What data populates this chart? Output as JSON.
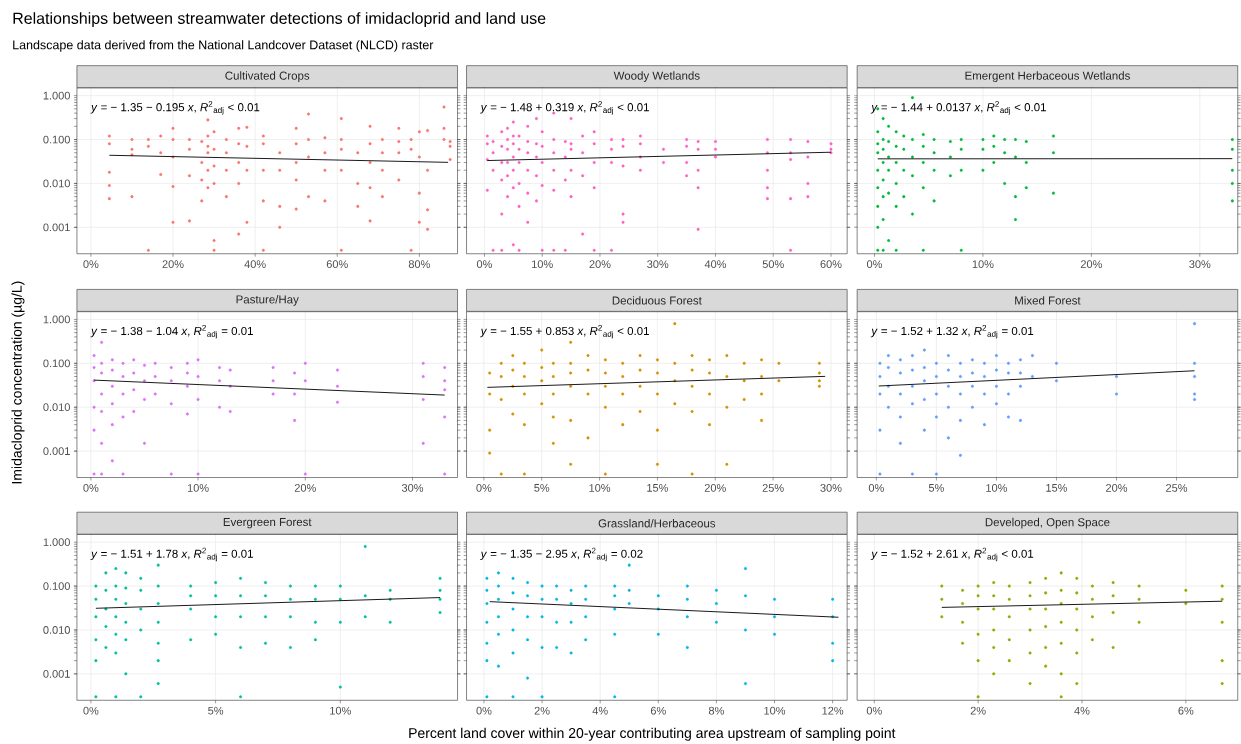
{
  "chart_data": [
    {
      "type": "scatter",
      "title": "Relationships between streamwater detections of imidacloprid and land use",
      "subtitle": "Landscape data derived from the National Landcover Dataset (NLCD) raster",
      "log": "y",
      "grid": true,
      "marker": "circle",
      "xlim": [
        -3.4,
        89.3
      ],
      "ylim": [
        0.00025,
        1.5
      ],
      "xticks": [
        {
          "value": 0,
          "label": "0%"
        },
        {
          "value": 20,
          "label": "20%"
        },
        {
          "value": 40,
          "label": "40%"
        },
        {
          "value": 60,
          "label": "60%"
        },
        {
          "value": 80,
          "label": "80%"
        }
      ],
      "yticks": [
        {
          "value": 0.001,
          "label": "0.001"
        },
        {
          "value": 0.01,
          "label": "0.010"
        },
        {
          "value": 0.1,
          "label": "0.100"
        },
        {
          "value": 1,
          "label": "1.000"
        }
      ],
      "annotations": [
        "*y* = − 1.35 − 0.195 *x*, *R*$^{2}$$_{adj}$ < 0.01"
      ],
      "series": [
        {
          "name": "Cultivated Crops",
          "color": "#F8766D",
          "x": [
            4.5,
            4.5,
            4.5,
            4.5,
            4.5,
            10,
            10,
            10,
            10,
            14,
            14,
            14,
            17,
            17,
            17,
            20,
            20,
            20,
            20,
            20,
            24,
            24,
            24,
            24,
            27,
            27,
            27,
            27,
            28.5,
            28.5,
            28.5,
            28.5,
            28.5,
            28.5,
            30,
            30,
            30,
            30,
            30,
            30,
            33,
            33,
            33,
            33,
            36,
            36,
            36,
            36,
            36,
            38,
            38,
            38,
            38,
            42,
            42,
            42,
            42,
            42,
            46,
            46,
            46,
            46,
            50,
            50,
            50,
            50,
            50,
            53,
            53,
            53,
            53,
            57,
            57,
            57,
            57,
            61,
            61,
            61,
            61,
            61,
            65,
            65,
            65,
            68,
            68,
            68,
            68,
            68,
            71,
            71,
            71,
            71,
            75,
            75,
            75,
            75,
            78,
            78,
            78,
            80,
            80,
            80,
            80,
            82,
            82,
            82,
            82,
            86,
            86,
            86,
            87.5,
            87.5,
            87.5
          ],
          "values": [
            0.12,
            0.08,
            0.018,
            0.009,
            0.0045,
            0.1,
            0.06,
            0.045,
            0.005,
            0.1,
            0.07,
            0.0003,
            0.12,
            0.05,
            0.016,
            0.18,
            0.1,
            0.04,
            0.0085,
            0.0013,
            0.1,
            0.06,
            0.015,
            0.0014,
            0.09,
            0.03,
            0.012,
            0.004,
            0.28,
            0.12,
            0.07,
            0.05,
            0.02,
            0.008,
            0.15,
            0.06,
            0.025,
            0.01,
            0.0005,
            0.0003,
            0.1,
            0.05,
            0.02,
            0.005,
            0.18,
            0.08,
            0.03,
            0.01,
            0.0007,
            0.19,
            0.07,
            0.02,
            0.0013,
            0.12,
            0.08,
            0.02,
            0.004,
            0.0003,
            0.05,
            0.02,
            0.003,
            0.001,
            0.18,
            0.08,
            0.03,
            0.012,
            0.0026,
            0.38,
            0.1,
            0.04,
            0.005,
            0.11,
            0.05,
            0.02,
            0.004,
            0.3,
            0.1,
            0.06,
            0.02,
            0.0003,
            0.05,
            0.01,
            0.003,
            0.2,
            0.08,
            0.03,
            0.008,
            0.0014,
            0.1,
            0.05,
            0.02,
            0.005,
            0.18,
            0.09,
            0.05,
            0.012,
            0.1,
            0.06,
            0.0003,
            0.15,
            0.04,
            0.006,
            0.0013,
            0.16,
            0.02,
            0.0025,
            0.0009,
            0.55,
            0.18,
            0.1,
            0.09,
            0.07,
            0.035
          ]
        },
        {
          "type": "line",
          "color": "#000000",
          "x": [
            4.5,
            87
          ],
          "values": [
            0.0438,
            0.0302
          ],
          "marker": "none"
        }
      ]
    },
    {
      "type": "scatter",
      "log": "y",
      "grid": true,
      "marker": "circle",
      "tick_labels": "x",
      "xlim": [
        -3.1,
        62.8
      ],
      "ylim": [
        0.00025,
        1.5
      ],
      "xticks": [
        {
          "value": 0,
          "label": "0%"
        },
        {
          "value": 10,
          "label": "10%"
        },
        {
          "value": 20,
          "label": "20%"
        },
        {
          "value": 30,
          "label": "30%"
        },
        {
          "value": 40,
          "label": "40%"
        },
        {
          "value": 50,
          "label": "50%"
        },
        {
          "value": 60,
          "label": "60%"
        }
      ],
      "yticks": [
        {
          "value": 0.001,
          "label": null
        },
        {
          "value": 0.01,
          "label": null
        },
        {
          "value": 0.1,
          "label": null
        },
        {
          "value": 1,
          "label": null
        }
      ],
      "annotations": [
        "*y* = − 1.48 + 0.319 *x*, *R*$^{2}$$_{adj}$ < 0.01"
      ],
      "series": [
        {
          "name": "Woody Wetlands",
          "color": "#FF61C3",
          "x": [
            0.5,
            0.5,
            0.5,
            0.5,
            1.5,
            1.5,
            1.5,
            1.5,
            3,
            3,
            3,
            3,
            3,
            3,
            4,
            4,
            4,
            4,
            4,
            4,
            5,
            5,
            5,
            5,
            5,
            5,
            5,
            6,
            6,
            6,
            6,
            6,
            6,
            7.5,
            7.5,
            7.5,
            7.5,
            7.5,
            7.5,
            9,
            9,
            9,
            9,
            9,
            10,
            10,
            10,
            10,
            10,
            12,
            12,
            12,
            12,
            12,
            12,
            14,
            14,
            14,
            14,
            15,
            15,
            15,
            15,
            15,
            17,
            17,
            17,
            17,
            19,
            19,
            19,
            19,
            19,
            22,
            22,
            22,
            22,
            24,
            24,
            24,
            24,
            24,
            27,
            27,
            27,
            27,
            31,
            31,
            35,
            35,
            35,
            35,
            37,
            37,
            37,
            37,
            37,
            40,
            40,
            40,
            49,
            49,
            49,
            49,
            49,
            53,
            53,
            53,
            53,
            53,
            56,
            56,
            56,
            56,
            60,
            60,
            60
          ],
          "values": [
            0.12,
            0.08,
            0.035,
            0.007,
            0.09,
            0.05,
            0.02,
            0.0003,
            0.15,
            0.07,
            0.03,
            0.012,
            0.002,
            0.0003,
            0.18,
            0.1,
            0.06,
            0.03,
            0.015,
            0.005,
            0.25,
            0.12,
            0.08,
            0.04,
            0.02,
            0.008,
            0.0004,
            0.12,
            0.06,
            0.03,
            0.01,
            0.003,
            0.0003,
            0.2,
            0.09,
            0.05,
            0.02,
            0.006,
            0.0013,
            0.3,
            0.08,
            0.04,
            0.015,
            0.004,
            0.15,
            0.07,
            0.03,
            0.009,
            0.0003,
            0.4,
            0.1,
            0.05,
            0.02,
            0.007,
            0.0003,
            0.09,
            0.04,
            0.012,
            0.0003,
            0.3,
            0.08,
            0.06,
            0.02,
            0.005,
            0.12,
            0.05,
            0.015,
            0.0007,
            0.15,
            0.08,
            0.03,
            0.008,
            0.0003,
            0.1,
            0.06,
            0.03,
            0.0003,
            0.1,
            0.07,
            0.025,
            0.002,
            0.0013,
            0.12,
            0.08,
            0.04,
            0.02,
            0.06,
            0.03,
            0.1,
            0.07,
            0.03,
            0.015,
            0.09,
            0.06,
            0.02,
            0.008,
            0.0009,
            0.09,
            0.06,
            0.04,
            0.1,
            0.05,
            0.02,
            0.008,
            0.0045,
            0.1,
            0.05,
            0.035,
            0.0045,
            0.0003,
            0.09,
            0.04,
            0.01,
            0.005,
            0.08,
            0.06,
            0.05
          ]
        },
        {
          "type": "line",
          "color": "#000000",
          "x": [
            0.5,
            60
          ],
          "values": [
            0.0332,
            0.0514
          ],
          "marker": "none"
        }
      ]
    },
    {
      "type": "scatter",
      "log": "y",
      "grid": true,
      "marker": "circle",
      "tick_labels": "x",
      "xlim": [
        -1.6,
        33.5
      ],
      "ylim": [
        0.00025,
        1.5
      ],
      "xticks": [
        {
          "value": 0,
          "label": "0%"
        },
        {
          "value": 10,
          "label": "10%"
        },
        {
          "value": 20,
          "label": "20%"
        },
        {
          "value": 30,
          "label": "30%"
        }
      ],
      "yticks": [
        {
          "value": 0.001,
          "label": null
        },
        {
          "value": 0.01,
          "label": null
        },
        {
          "value": 0.1,
          "label": null
        },
        {
          "value": 1,
          "label": null
        }
      ],
      "annotations": [
        "*y* = − 1.44 + 0.0137 *x*, *R*$^{2}$$_{adj}$ < 0.01"
      ],
      "series": [
        {
          "name": "Emergent Herbaceous Wetlands",
          "color": "#00BA38",
          "x": [
            0.3,
            0.3,
            0.3,
            0.3,
            0.3,
            0.3,
            0.3,
            0.3,
            0.3,
            0.8,
            0.8,
            0.8,
            0.8,
            0.8,
            0.8,
            0.8,
            0.8,
            1.3,
            1.3,
            1.3,
            1.3,
            1.3,
            1.3,
            2,
            2,
            2,
            2,
            2,
            2,
            2.7,
            2.7,
            2.7,
            2.7,
            3.5,
            3.5,
            3.5,
            3.5,
            3.5,
            4.5,
            4.5,
            4.5,
            4.5,
            4.5,
            5.5,
            5.5,
            5.5,
            5.5,
            7,
            7,
            7,
            8,
            8,
            8,
            8,
            10,
            10,
            10,
            11,
            11,
            11,
            12,
            12,
            12,
            13,
            13,
            13,
            13,
            14,
            14,
            14,
            16.5,
            16.5,
            16.5,
            33,
            33,
            33,
            33,
            33
          ],
          "values": [
            0.5,
            0.15,
            0.08,
            0.05,
            0.02,
            0.008,
            0.003,
            0.001,
            0.0003,
            0.3,
            0.1,
            0.06,
            0.03,
            0.012,
            0.005,
            0.0015,
            0.0003,
            0.2,
            0.09,
            0.04,
            0.02,
            0.006,
            0.0005,
            0.15,
            0.07,
            0.03,
            0.01,
            0.003,
            0.0003,
            0.12,
            0.06,
            0.02,
            0.005,
            0.9,
            0.1,
            0.04,
            0.015,
            0.002,
            0.13,
            0.07,
            0.03,
            0.008,
            0.0003,
            0.1,
            0.05,
            0.02,
            0.004,
            0.09,
            0.04,
            0.015,
            0.1,
            0.06,
            0.02,
            0.0003,
            0.1,
            0.06,
            0.02,
            0.12,
            0.07,
            0.03,
            0.1,
            0.05,
            0.01,
            0.1,
            0.04,
            0.005,
            0.0015,
            0.09,
            0.03,
            0.008,
            0.12,
            0.05,
            0.006,
            0.1,
            0.06,
            0.02,
            0.01,
            0.004
          ]
        },
        {
          "type": "line",
          "color": "#000000",
          "x": [
            0.3,
            33
          ],
          "values": [
            0.0363,
            0.0367
          ],
          "marker": "none"
        }
      ]
    },
    {
      "type": "scatter",
      "ylabel": "Imidacloprid concentration (µg/L)",
      "log": "y",
      "grid": true,
      "marker": "circle",
      "xlim": [
        -1.3,
        34.2
      ],
      "ylim": [
        0.00025,
        1.5
      ],
      "xticks": [
        {
          "value": 0,
          "label": "0%"
        },
        {
          "value": 10,
          "label": "10%"
        },
        {
          "value": 20,
          "label": "20%"
        },
        {
          "value": 30,
          "label": "30%"
        }
      ],
      "yticks": [
        {
          "value": 0.001,
          "label": "0.001"
        },
        {
          "value": 0.01,
          "label": "0.010"
        },
        {
          "value": 0.1,
          "label": "0.100"
        },
        {
          "value": 1,
          "label": "1.000"
        }
      ],
      "annotations": [
        "*y* = − 1.38 − 1.04 *x*, *R*$^{2}$$_{adj}$ = 0.01"
      ],
      "series": [
        {
          "name": "Pasture/Hay",
          "color": "#DB72FB",
          "x": [
            0.3,
            0.3,
            0.3,
            0.3,
            0.3,
            0.3,
            1,
            1,
            1,
            1,
            1,
            1,
            1,
            2,
            2,
            2,
            2,
            2,
            2,
            3,
            3,
            3,
            3,
            3,
            4,
            4,
            4,
            4,
            5,
            5,
            5,
            5,
            6,
            6,
            6,
            7.5,
            7.5,
            7.5,
            7.5,
            9,
            9,
            9,
            9,
            10,
            10,
            10,
            10,
            12,
            12,
            12,
            13,
            13,
            13,
            17,
            17,
            17,
            19,
            19,
            19,
            20,
            20,
            20,
            23,
            23,
            23,
            31,
            31,
            31,
            31,
            33,
            33,
            33,
            33,
            33
          ],
          "values": [
            0.15,
            0.08,
            0.04,
            0.01,
            0.003,
            0.0003,
            0.3,
            0.1,
            0.06,
            0.02,
            0.008,
            0.0015,
            0.0003,
            0.12,
            0.07,
            0.03,
            0.012,
            0.004,
            0.0006,
            0.1,
            0.05,
            0.02,
            0.006,
            0.0003,
            0.12,
            0.06,
            0.025,
            0.008,
            0.09,
            0.04,
            0.015,
            0.0015,
            0.1,
            0.05,
            0.02,
            0.08,
            0.04,
            0.012,
            0.0003,
            0.1,
            0.06,
            0.03,
            0.007,
            0.12,
            0.05,
            0.015,
            0.0003,
            0.08,
            0.04,
            0.01,
            0.07,
            0.03,
            0.008,
            0.08,
            0.04,
            0.02,
            0.06,
            0.02,
            0.005,
            0.1,
            0.04,
            0.0003,
            0.07,
            0.03,
            0.013,
            0.1,
            0.05,
            0.015,
            0.0015,
            0.08,
            0.04,
            0.025,
            0.006,
            0.0003
          ]
        },
        {
          "type": "line",
          "color": "#000000",
          "x": [
            0.3,
            33
          ],
          "values": [
            0.0414,
            0.0189
          ],
          "marker": "none"
        }
      ]
    },
    {
      "type": "scatter",
      "log": "y",
      "grid": true,
      "marker": "circle",
      "tick_labels": "x",
      "xlim": [
        -1.5,
        31.4
      ],
      "ylim": [
        0.00025,
        1.5
      ],
      "xticks": [
        {
          "value": 0,
          "label": "0%"
        },
        {
          "value": 5,
          "label": "5%"
        },
        {
          "value": 10,
          "label": "10%"
        },
        {
          "value": 15,
          "label": "15%"
        },
        {
          "value": 20,
          "label": "20%"
        },
        {
          "value": 25,
          "label": "25%"
        },
        {
          "value": 30,
          "label": "30%"
        }
      ],
      "yticks": [
        {
          "value": 0.001,
          "label": null
        },
        {
          "value": 0.01,
          "label": null
        },
        {
          "value": 0.1,
          "label": null
        },
        {
          "value": 1,
          "label": null
        }
      ],
      "annotations": [
        "*y* = − 1.55 + 0.853 *x*, *R*$^{2}$$_{adj}$ < 0.01"
      ],
      "series": [
        {
          "name": "Deciduous Forest",
          "color": "#D39200",
          "x": [
            0.5,
            0.5,
            0.5,
            0.5,
            1.5,
            1.5,
            1.5,
            1.5,
            2.5,
            2.5,
            2.5,
            2.5,
            3.5,
            3.5,
            3.5,
            3.5,
            3.5,
            5,
            5,
            5,
            5,
            6,
            6,
            6,
            6,
            6,
            7.5,
            7.5,
            7.5,
            7.5,
            7.5,
            7.5,
            9,
            9,
            9,
            9,
            10.5,
            10.5,
            10.5,
            10.5,
            10.5,
            12,
            12,
            12,
            12,
            13.5,
            13.5,
            13.5,
            13.5,
            15,
            15,
            15,
            15,
            15,
            16.5,
            16.5,
            16.5,
            16.5,
            18,
            18,
            18,
            18,
            18,
            19.5,
            19.5,
            19.5,
            19.5,
            21,
            21,
            21,
            21,
            22.5,
            22.5,
            22.5,
            24,
            24,
            24,
            24,
            25.5,
            25.5,
            29,
            29,
            29,
            29
          ],
          "values": [
            0.06,
            0.02,
            0.003,
            0.0009,
            0.1,
            0.05,
            0.015,
            0.0003,
            0.15,
            0.07,
            0.03,
            0.007,
            0.1,
            0.05,
            0.02,
            0.004,
            0.0003,
            0.2,
            0.08,
            0.04,
            0.012,
            0.1,
            0.05,
            0.02,
            0.006,
            0.0015,
            0.3,
            0.1,
            0.06,
            0.03,
            0.005,
            0.0005,
            0.15,
            0.07,
            0.02,
            0.002,
            0.12,
            0.06,
            0.03,
            0.01,
            0.0003,
            0.1,
            0.05,
            0.02,
            0.004,
            0.15,
            0.07,
            0.03,
            0.008,
            0.12,
            0.06,
            0.02,
            0.003,
            0.0005,
            0.8,
            0.1,
            0.04,
            0.012,
            0.15,
            0.07,
            0.03,
            0.008,
            0.0003,
            0.12,
            0.06,
            0.02,
            0.004,
            0.15,
            0.05,
            0.01,
            0.0005,
            0.1,
            0.04,
            0.015,
            0.12,
            0.05,
            0.02,
            0.005,
            0.1,
            0.04,
            0.1,
            0.06,
            0.04,
            0.03
          ]
        },
        {
          "type": "line",
          "color": "#000000",
          "x": [
            0.3,
            29.5
          ],
          "values": [
            0.0283,
            0.0504
          ],
          "marker": "none"
        }
      ]
    },
    {
      "type": "scatter",
      "log": "y",
      "grid": true,
      "marker": "circle",
      "tick_labels": "x",
      "xlim": [
        -1.6,
        30.1
      ],
      "ylim": [
        0.00025,
        1.5
      ],
      "xticks": [
        {
          "value": 0,
          "label": "0%"
        },
        {
          "value": 5,
          "label": "5%"
        },
        {
          "value": 10,
          "label": "10%"
        },
        {
          "value": 15,
          "label": "15%"
        },
        {
          "value": 20,
          "label": "20%"
        },
        {
          "value": 25,
          "label": "25%"
        }
      ],
      "yticks": [
        {
          "value": 0.001,
          "label": null
        },
        {
          "value": 0.01,
          "label": null
        },
        {
          "value": 0.1,
          "label": null
        },
        {
          "value": 1,
          "label": null
        }
      ],
      "annotations": [
        "*y* = − 1.52 + 1.32 *x*, *R*$^{2}$$_{adj}$ = 0.01"
      ],
      "series": [
        {
          "name": "Mixed Forest",
          "color": "#619CFF",
          "x": [
            0.3,
            0.3,
            0.3,
            0.3,
            0.3,
            1,
            1,
            1,
            1,
            2,
            2,
            2,
            2,
            2,
            3,
            3,
            3,
            3,
            3,
            4,
            4,
            4,
            4,
            4,
            5,
            5,
            5,
            5,
            5,
            6,
            6,
            6,
            6,
            6,
            7,
            7,
            7,
            7,
            7,
            8,
            8,
            8,
            8,
            9,
            9,
            9,
            9,
            10,
            10,
            10,
            10,
            11,
            11,
            11,
            11,
            12,
            12,
            12,
            12,
            13,
            13,
            15,
            15,
            20,
            20,
            26.5,
            26.5,
            26.5,
            26.5,
            26.5
          ],
          "values": [
            0.1,
            0.05,
            0.02,
            0.003,
            0.0003,
            0.15,
            0.08,
            0.03,
            0.01,
            0.12,
            0.06,
            0.02,
            0.006,
            0.0015,
            0.15,
            0.07,
            0.03,
            0.012,
            0.0003,
            0.2,
            0.08,
            0.04,
            0.015,
            0.003,
            0.1,
            0.05,
            0.02,
            0.006,
            0.0003,
            0.15,
            0.07,
            0.03,
            0.01,
            0.002,
            0.1,
            0.05,
            0.02,
            0.005,
            0.0008,
            0.12,
            0.06,
            0.03,
            0.01,
            0.1,
            0.05,
            0.02,
            0.004,
            0.15,
            0.07,
            0.03,
            0.012,
            0.1,
            0.06,
            0.02,
            0.006,
            0.12,
            0.06,
            0.03,
            0.005,
            0.15,
            0.05,
            0.1,
            0.04,
            0.05,
            0.02,
            0.8,
            0.1,
            0.05,
            0.02,
            0.015
          ]
        },
        {
          "type": "line",
          "color": "#000000",
          "x": [
            0.2,
            26.5
          ],
          "values": [
            0.0304,
            0.0676
          ],
          "marker": "none"
        }
      ]
    },
    {
      "type": "scatter",
      "log": "y",
      "grid": true,
      "marker": "circle",
      "xlim": [
        -0.56,
        14.7
      ],
      "ylim": [
        0.00025,
        1.5
      ],
      "xticks": [
        {
          "value": 0,
          "label": "0%"
        },
        {
          "value": 5,
          "label": "5%"
        },
        {
          "value": 10,
          "label": "10%"
        }
      ],
      "yticks": [
        {
          "value": 0.001,
          "label": "0.001"
        },
        {
          "value": 0.01,
          "label": "0.010"
        },
        {
          "value": 0.1,
          "label": "0.100"
        },
        {
          "value": 1,
          "label": "1.000"
        }
      ],
      "annotations": [
        "*y* = − 1.51 + 1.78 *x*, *R*$^{2}$$_{adj}$ = 0.01"
      ],
      "series": [
        {
          "name": "Evergreen Forest",
          "color": "#00C19F",
          "x": [
            0.2,
            0.2,
            0.2,
            0.2,
            0.2,
            0.2,
            0.6,
            0.6,
            0.6,
            0.6,
            0.6,
            1,
            1,
            1,
            1,
            1,
            1,
            1,
            1.4,
            1.4,
            1.4,
            1.4,
            1.4,
            1.4,
            2,
            2,
            2,
            2,
            2,
            2.7,
            2.7,
            2.7,
            2.7,
            2.7,
            2.7,
            2.7,
            4,
            4,
            4,
            4,
            5,
            5,
            5,
            5,
            6,
            6,
            6,
            6,
            6,
            7,
            7,
            7,
            7,
            8,
            8,
            8,
            8,
            9,
            9,
            9,
            9,
            10,
            10,
            10,
            10,
            11,
            11,
            11,
            12,
            12,
            12,
            14,
            14,
            14,
            14
          ],
          "values": [
            0.1,
            0.05,
            0.02,
            0.006,
            0.002,
            0.0003,
            0.2,
            0.08,
            0.03,
            0.012,
            0.004,
            0.25,
            0.1,
            0.05,
            0.02,
            0.008,
            0.003,
            0.0003,
            0.2,
            0.09,
            0.04,
            0.015,
            0.006,
            0.001,
            0.15,
            0.08,
            0.03,
            0.01,
            0.0003,
            0.3,
            0.1,
            0.04,
            0.015,
            0.005,
            0.002,
            0.0006,
            0.1,
            0.06,
            0.03,
            0.006,
            0.12,
            0.06,
            0.02,
            0.008,
            0.15,
            0.06,
            0.02,
            0.004,
            0.0003,
            0.12,
            0.06,
            0.02,
            0.005,
            0.1,
            0.05,
            0.02,
            0.004,
            0.1,
            0.05,
            0.015,
            0.006,
            0.1,
            0.05,
            0.015,
            0.0005,
            0.8,
            0.06,
            0.02,
            0.08,
            0.05,
            0.015,
            0.15,
            0.08,
            0.05,
            0.025
          ]
        },
        {
          "type": "line",
          "color": "#000000",
          "x": [
            0.2,
            14
          ],
          "values": [
            0.0312,
            0.0548
          ],
          "marker": "none"
        }
      ]
    },
    {
      "type": "scatter",
      "xlabel": "Percent land cover within 20-year contributing area upstream of sampling point",
      "log": "y",
      "grid": true,
      "marker": "circle",
      "tick_labels": "x",
      "xlim": [
        -0.6,
        12.5
      ],
      "ylim": [
        0.00025,
        1.5
      ],
      "xticks": [
        {
          "value": 0,
          "label": "0%"
        },
        {
          "value": 2,
          "label": "2%"
        },
        {
          "value": 4,
          "label": "4%"
        },
        {
          "value": 6,
          "label": "6%"
        },
        {
          "value": 8,
          "label": "8%"
        },
        {
          "value": 10,
          "label": "10%"
        },
        {
          "value": 12,
          "label": "12%"
        }
      ],
      "yticks": [
        {
          "value": 0.001,
          "label": null
        },
        {
          "value": 0.01,
          "label": null
        },
        {
          "value": 0.1,
          "label": null
        },
        {
          "value": 1,
          "label": null
        }
      ],
      "annotations": [
        "*y* = − 1.35 − 2.95 *x*, *R*$^{2}$$_{adj}$ = 0.02"
      ],
      "series": [
        {
          "name": "Grassland/Herbaceous",
          "color": "#00B9E3",
          "x": [
            0.1,
            0.1,
            0.1,
            0.1,
            0.1,
            0.1,
            0.1,
            0.5,
            0.5,
            0.5,
            0.5,
            0.5,
            0.5,
            1,
            1,
            1,
            1,
            1,
            1,
            1.5,
            1.5,
            1.5,
            1.5,
            1.5,
            2,
            2,
            2,
            2,
            2,
            2.5,
            2.5,
            2.5,
            2.5,
            3,
            3,
            3,
            3,
            3.5,
            3.5,
            3.5,
            3.5,
            4.5,
            4.5,
            4.5,
            4.5,
            4.5,
            5,
            5,
            5,
            6,
            6,
            6,
            7,
            7,
            7,
            7,
            8,
            8,
            8,
            9,
            9,
            9,
            9,
            10,
            10,
            10,
            12,
            12,
            12,
            12
          ],
          "values": [
            0.15,
            0.08,
            0.04,
            0.015,
            0.005,
            0.002,
            0.0003,
            0.2,
            0.1,
            0.05,
            0.02,
            0.008,
            0.0015,
            0.15,
            0.07,
            0.03,
            0.01,
            0.003,
            0.0003,
            0.12,
            0.06,
            0.02,
            0.006,
            0.0008,
            0.1,
            0.05,
            0.02,
            0.004,
            0.0003,
            0.1,
            0.05,
            0.015,
            0.004,
            0.08,
            0.04,
            0.015,
            0.003,
            0.1,
            0.05,
            0.02,
            0.006,
            0.1,
            0.06,
            0.03,
            0.008,
            0.0003,
            0.3,
            0.08,
            0.04,
            0.06,
            0.03,
            0.008,
            0.1,
            0.05,
            0.02,
            0.004,
            0.08,
            0.04,
            0.015,
            0.25,
            0.06,
            0.01,
            0.0006,
            0.05,
            0.02,
            0.008,
            0.05,
            0.02,
            0.005,
            0.002
          ]
        },
        {
          "type": "line",
          "color": "#000000",
          "x": [
            0.2,
            12.2
          ],
          "values": [
            0.0442,
            0.0195
          ],
          "marker": "none"
        }
      ]
    },
    {
      "type": "scatter",
      "log": "y",
      "grid": true,
      "marker": "circle",
      "tick_labels": "x",
      "xlim": [
        -0.33,
        7.0
      ],
      "ylim": [
        0.00025,
        1.5
      ],
      "xticks": [
        {
          "value": 0,
          "label": "0%"
        },
        {
          "value": 2,
          "label": "2%"
        },
        {
          "value": 4,
          "label": "4%"
        },
        {
          "value": 6,
          "label": "6%"
        }
      ],
      "yticks": [
        {
          "value": 0.001,
          "label": null
        },
        {
          "value": 0.01,
          "label": null
        },
        {
          "value": 0.1,
          "label": null
        },
        {
          "value": 1,
          "label": null
        }
      ],
      "annotations": [
        "*y* = − 1.52 + 2.61 *x*, *R*$^{2}$$_{adj}$ < 0.01"
      ],
      "series": [
        {
          "name": "Developed, Open Space",
          "color": "#93AA00",
          "x": [
            1.3,
            1.3,
            1.3,
            1.7,
            1.7,
            1.7,
            1.7,
            2,
            2,
            2,
            2,
            2,
            2,
            2.3,
            2.3,
            2.3,
            2.3,
            2.3,
            2.3,
            2.6,
            2.6,
            2.6,
            2.6,
            2.6,
            3,
            3,
            3,
            3,
            3,
            3,
            3.3,
            3.3,
            3.3,
            3.3,
            3.3,
            3.3,
            3.6,
            3.6,
            3.6,
            3.6,
            3.6,
            3.6,
            3.6,
            3.9,
            3.9,
            3.9,
            3.9,
            3.9,
            3.9,
            4.2,
            4.2,
            4.2,
            4.2,
            4.6,
            4.6,
            4.6,
            4.6,
            5.1,
            5.1,
            5.1,
            6,
            6,
            6.7,
            6.7,
            6.7,
            6.7,
            6.7
          ],
          "values": [
            0.1,
            0.05,
            0.02,
            0.08,
            0.04,
            0.015,
            0.005,
            0.1,
            0.06,
            0.03,
            0.008,
            0.002,
            0.0003,
            0.12,
            0.06,
            0.03,
            0.01,
            0.004,
            0.001,
            0.1,
            0.05,
            0.02,
            0.006,
            0.002,
            0.12,
            0.06,
            0.03,
            0.01,
            0.003,
            0.0006,
            0.15,
            0.07,
            0.03,
            0.012,
            0.004,
            0.0015,
            0.2,
            0.08,
            0.04,
            0.015,
            0.005,
            0.001,
            0.0003,
            0.15,
            0.07,
            0.03,
            0.01,
            0.003,
            0.0006,
            0.1,
            0.05,
            0.02,
            0.006,
            0.12,
            0.06,
            0.025,
            0.004,
            0.1,
            0.05,
            0.015,
            0.08,
            0.04,
            0.1,
            0.05,
            0.015,
            0.002,
            0.0006
          ]
        },
        {
          "type": "line",
          "color": "#000000",
          "x": [
            1.3,
            6.7
          ],
          "values": [
            0.0327,
            0.0452
          ],
          "marker": "none"
        }
      ]
    }
  ]
}
